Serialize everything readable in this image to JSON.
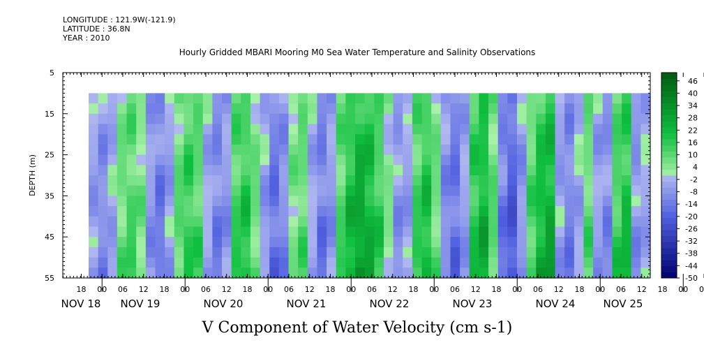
{
  "header": {
    "longitude": "LONGITUDE : 121.9W(-121.9)",
    "latitude": "LATITUDE : 36.8N",
    "year": "YEAR : 2010"
  },
  "chart_data": {
    "type": "heatmap",
    "title": "Hourly Gridded MBARI Mooring M0 Sea Water Temperature and Salinity Observations",
    "xlabel": "V Component of Water Velocity (cm s-1)",
    "ylabel": "DEPTH (m)",
    "ylim": [
      5,
      55
    ],
    "y_inverted": true,
    "yticks": [
      5,
      15,
      25,
      35,
      45,
      55
    ],
    "data_depth_range": [
      10,
      55
    ],
    "x_hour_ticks": [
      "18",
      "00",
      "06",
      "12",
      "18",
      "00",
      "06",
      "12",
      "18",
      "00",
      "06",
      "12",
      "18",
      "00",
      "06",
      "12",
      "18",
      "00",
      "06",
      "12",
      "18",
      "00",
      "06",
      "12",
      "18",
      "00",
      "06",
      "12",
      "18",
      "00",
      "06",
      "12"
    ],
    "x_day_labels": [
      "NOV 18",
      "NOV 19",
      "NOV 20",
      "NOV 21",
      "NOV 22",
      "NOV 23",
      "NOV 24",
      "NOV 25"
    ],
    "colorbar": {
      "min": -50,
      "max": 50,
      "step": 6,
      "tick_labels": [
        "46",
        "40",
        "34",
        "28",
        "22",
        "16",
        "10",
        "4",
        "-2",
        "-8",
        "-14",
        "-20",
        "-26",
        "-32",
        "-38",
        "-44",
        "-50"
      ]
    },
    "v_columns": [
      -6,
      -10,
      -4,
      8,
      12,
      6,
      -8,
      -14,
      -6,
      10,
      16,
      12,
      -4,
      -12,
      -8,
      14,
      18,
      8,
      -6,
      -16,
      -10,
      6,
      10,
      -4,
      -14,
      -8,
      12,
      22,
      28,
      24,
      16,
      4,
      -8,
      -6,
      14,
      20,
      8,
      -10,
      -16,
      -6,
      18,
      24,
      10,
      -14,
      -22,
      -8,
      12,
      22,
      26,
      -6,
      -12,
      -4,
      10,
      -6,
      -10,
      14,
      20,
      -8,
      -4
    ]
  },
  "colors": {
    "positive_light": "#a8f0a8",
    "positive_strong": "#10c040",
    "positive_dark": "#005a10",
    "negative_light": "#b0b8f0",
    "negative_strong": "#5060e0",
    "negative_dark": "#000070",
    "frame": "#000000"
  }
}
